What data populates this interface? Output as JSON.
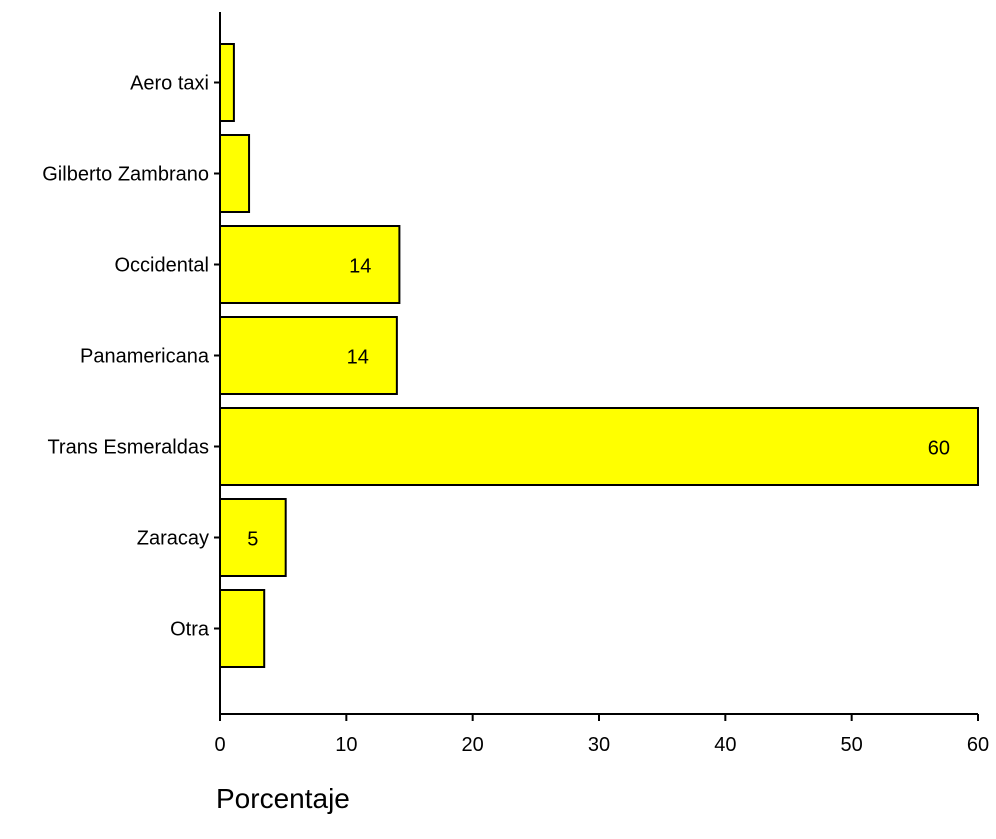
{
  "chart_data": {
    "type": "bar",
    "orientation": "horizontal",
    "categories": [
      "Aero taxi",
      "Gilberto Zambrano",
      "Occidental",
      "Panamericana",
      "Trans Esmeraldas",
      "Zaracay",
      "Otra"
    ],
    "values": [
      1.1,
      2.3,
      14.2,
      14.0,
      60.0,
      5.2,
      3.5
    ],
    "data_labels": [
      "",
      "",
      "14",
      "14",
      "60",
      "5",
      ""
    ],
    "xlabel": "Porcentaje",
    "ylabel": "",
    "title": "",
    "xlim": [
      0,
      60
    ],
    "xticks": [
      0,
      10,
      20,
      30,
      40,
      50,
      60
    ],
    "bar_color": "#ffff00",
    "bar_edge_color": "#000000",
    "grid": false,
    "legend": "none"
  }
}
